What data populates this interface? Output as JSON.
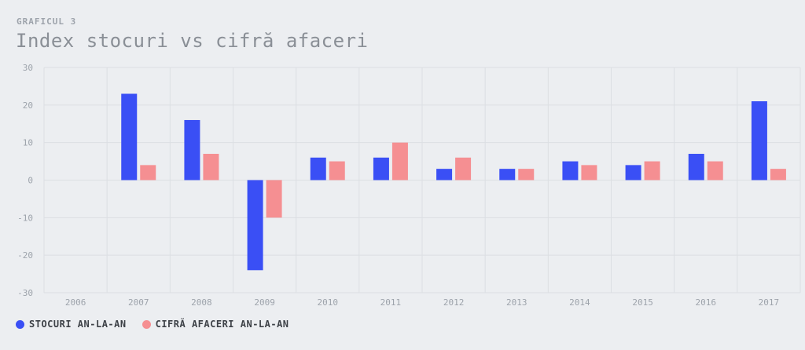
{
  "header": {
    "eyebrow": "GRAFICUL 3",
    "title": "Index stocuri vs cifră afaceri"
  },
  "colors": {
    "series_1": "#3a4ff5",
    "series_2": "#f58f92",
    "grid": "#dcdfe3",
    "tick": "#9da3ab"
  },
  "chart_data": {
    "type": "bar",
    "title": "Index stocuri vs cifră afaceri",
    "xlabel": "",
    "ylabel": "",
    "ylim": [
      -30,
      30
    ],
    "yticks": [
      30,
      20,
      10,
      0,
      -10,
      -20,
      -30
    ],
    "grid": true,
    "legend_position": "bottom-left",
    "categories": [
      "2006",
      "2007",
      "2008",
      "2009",
      "2010",
      "2011",
      "2012",
      "2013",
      "2014",
      "2015",
      "2016",
      "2017"
    ],
    "series": [
      {
        "name": "STOCURI AN-LA-AN",
        "values": [
          null,
          23,
          16,
          -24,
          6,
          6,
          3,
          3,
          5,
          4,
          7,
          21
        ]
      },
      {
        "name": "CIFRĂ AFACERI AN-LA-AN",
        "values": [
          null,
          4,
          7,
          -10,
          5,
          10,
          6,
          3,
          4,
          5,
          5,
          3
        ]
      }
    ]
  }
}
